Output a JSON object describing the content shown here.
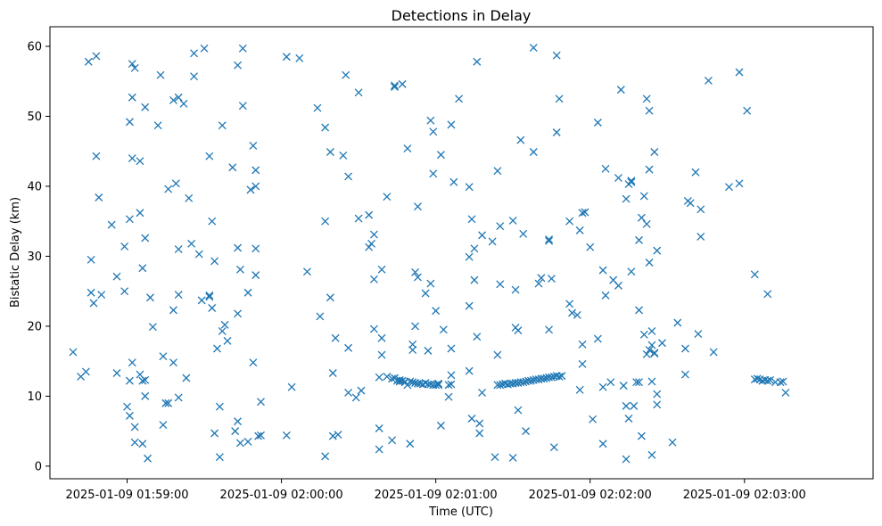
{
  "chart_data": {
    "type": "scatter",
    "title": "Detections in Delay",
    "xlabel": "Time (UTC)",
    "ylabel": "Bistatic Delay (km)",
    "marker": "x",
    "color": "#1f77b4",
    "x_tick_labels": [
      "2025-01-09 01:59:00",
      "2025-01-09 02:00:00",
      "2025-01-09 02:01:00",
      "2025-01-09 02:02:00",
      "2025-01-09 02:03:00"
    ],
    "x_tick_seconds": [
      0,
      60,
      120,
      180,
      240
    ],
    "x_unit_note": "seconds after 2025-01-09 01:59:00",
    "y_ticks": [
      0,
      10,
      20,
      30,
      40,
      50,
      60
    ],
    "xlim": [
      -30,
      290
    ],
    "ylim": [
      -1.8,
      62.8
    ],
    "grid": false,
    "legend": "none",
    "points": [
      [
        -21,
        16.3
      ],
      [
        -18,
        12.8
      ],
      [
        -16,
        13.5
      ],
      [
        -15,
        57.8
      ],
      [
        -14,
        24.8
      ],
      [
        -14,
        29.5
      ],
      [
        -13,
        23.3
      ],
      [
        -12,
        58.6
      ],
      [
        -12,
        44.3
      ],
      [
        -11,
        38.4
      ],
      [
        -10,
        24.5
      ],
      [
        -6,
        34.5
      ],
      [
        -4,
        27.1
      ],
      [
        -4,
        13.3
      ],
      [
        -1,
        25.0
      ],
      [
        -1,
        31.4
      ],
      [
        0,
        8.5
      ],
      [
        1,
        7.2
      ],
      [
        1,
        35.3
      ],
      [
        1,
        49.2
      ],
      [
        1,
        12.2
      ],
      [
        2,
        14.8
      ],
      [
        2,
        52.7
      ],
      [
        2,
        57.5
      ],
      [
        2,
        44.0
      ],
      [
        3,
        56.9
      ],
      [
        3,
        5.6
      ],
      [
        3,
        3.4
      ],
      [
        5,
        43.6
      ],
      [
        5,
        36.2
      ],
      [
        5,
        13.1
      ],
      [
        6,
        12.2
      ],
      [
        6,
        28.3
      ],
      [
        6,
        3.2
      ],
      [
        7,
        32.6
      ],
      [
        7,
        51.3
      ],
      [
        7,
        10.0
      ],
      [
        7,
        12.3
      ],
      [
        8,
        1.1
      ],
      [
        9,
        24.1
      ],
      [
        10,
        19.9
      ],
      [
        12,
        48.7
      ],
      [
        13,
        55.9
      ],
      [
        14,
        15.7
      ],
      [
        14,
        5.9
      ],
      [
        15,
        9.0
      ],
      [
        16,
        9.0
      ],
      [
        16,
        39.6
      ],
      [
        18,
        52.3
      ],
      [
        18,
        22.3
      ],
      [
        18,
        14.8
      ],
      [
        19,
        40.4
      ],
      [
        20,
        52.7
      ],
      [
        20,
        31.0
      ],
      [
        20,
        24.5
      ],
      [
        20,
        9.8
      ],
      [
        22,
        51.8
      ],
      [
        23,
        12.6
      ],
      [
        24,
        38.3
      ],
      [
        25,
        31.8
      ],
      [
        26,
        55.7
      ],
      [
        26,
        59.0
      ],
      [
        28,
        30.3
      ],
      [
        29,
        23.7
      ],
      [
        30,
        59.7
      ],
      [
        32,
        24.2
      ],
      [
        32,
        24.4
      ],
      [
        32,
        44.3
      ],
      [
        33,
        35.0
      ],
      [
        33,
        22.6
      ],
      [
        34,
        4.7
      ],
      [
        34,
        29.3
      ],
      [
        35,
        16.8
      ],
      [
        36,
        1.3
      ],
      [
        36,
        8.5
      ],
      [
        37,
        19.3
      ],
      [
        37,
        48.7
      ],
      [
        38,
        20.2
      ],
      [
        39,
        17.9
      ],
      [
        41,
        42.7
      ],
      [
        42,
        5.0
      ],
      [
        43,
        6.4
      ],
      [
        43,
        31.2
      ],
      [
        43,
        21.8
      ],
      [
        43,
        57.3
      ],
      [
        44,
        28.1
      ],
      [
        44,
        3.3
      ],
      [
        45,
        59.7
      ],
      [
        45,
        51.5
      ],
      [
        47,
        24.8
      ],
      [
        47,
        3.5
      ],
      [
        48,
        39.5
      ],
      [
        49,
        14.8
      ],
      [
        49,
        45.8
      ],
      [
        50,
        42.3
      ],
      [
        50,
        31.1
      ],
      [
        50,
        40.0
      ],
      [
        50,
        27.3
      ],
      [
        51,
        4.3
      ],
      [
        52,
        9.2
      ],
      [
        52,
        4.4
      ],
      [
        62,
        58.5
      ],
      [
        64,
        11.3
      ],
      [
        62,
        4.4
      ],
      [
        67,
        58.3
      ],
      [
        70,
        27.8
      ],
      [
        74,
        51.2
      ],
      [
        75,
        21.4
      ],
      [
        77,
        48.4
      ],
      [
        77,
        35.0
      ],
      [
        77,
        1.4
      ],
      [
        79,
        24.1
      ],
      [
        79,
        44.9
      ],
      [
        80,
        13.3
      ],
      [
        80,
        4.3
      ],
      [
        81,
        18.3
      ],
      [
        82,
        4.5
      ],
      [
        84,
        44.4
      ],
      [
        85,
        55.9
      ],
      [
        86,
        16.9
      ],
      [
        86,
        41.4
      ],
      [
        86,
        10.5
      ],
      [
        89,
        9.8
      ],
      [
        90,
        53.4
      ],
      [
        90,
        35.4
      ],
      [
        91,
        10.8
      ],
      [
        94,
        31.3
      ],
      [
        94,
        35.9
      ],
      [
        95,
        31.8
      ],
      [
        96,
        33.1
      ],
      [
        96,
        19.6
      ],
      [
        96,
        26.7
      ],
      [
        98,
        12.7
      ],
      [
        98,
        2.4
      ],
      [
        98,
        5.4
      ],
      [
        99,
        15.9
      ],
      [
        99,
        28.1
      ],
      [
        99,
        18.3
      ],
      [
        101,
        12.8
      ],
      [
        101,
        38.5
      ],
      [
        103,
        12.5
      ],
      [
        103,
        3.7
      ],
      [
        104,
        12.6
      ],
      [
        104,
        54.2
      ],
      [
        104,
        54.4
      ],
      [
        105,
        12.2
      ],
      [
        106,
        12.3
      ],
      [
        106,
        12.1
      ],
      [
        107,
        54.6
      ],
      [
        107,
        12.2
      ],
      [
        108,
        12.0
      ],
      [
        108,
        12.1
      ],
      [
        109,
        11.6
      ],
      [
        109,
        45.4
      ],
      [
        110,
        3.2
      ],
      [
        110,
        12.1
      ],
      [
        111,
        16.6
      ],
      [
        111,
        17.4
      ],
      [
        111,
        12.0
      ],
      [
        112,
        11.9
      ],
      [
        112,
        27.7
      ],
      [
        112,
        20.0
      ],
      [
        113,
        11.8
      ],
      [
        113,
        27.0
      ],
      [
        113,
        37.1
      ],
      [
        114,
        11.8
      ],
      [
        115,
        11.7
      ],
      [
        116,
        11.9
      ],
      [
        116,
        24.7
      ],
      [
        117,
        11.7
      ],
      [
        117,
        16.5
      ],
      [
        118,
        11.7
      ],
      [
        118,
        26.1
      ],
      [
        118,
        49.4
      ],
      [
        119,
        11.6
      ],
      [
        119,
        47.8
      ],
      [
        119,
        41.8
      ],
      [
        120,
        11.6
      ],
      [
        120,
        22.2
      ],
      [
        121,
        11.6
      ],
      [
        121,
        11.7
      ],
      [
        121,
        11.8
      ],
      [
        122,
        44.5
      ],
      [
        122,
        5.8
      ],
      [
        123,
        19.5
      ],
      [
        125,
        11.6
      ],
      [
        125,
        9.9
      ],
      [
        126,
        11.7
      ],
      [
        126,
        13.0
      ],
      [
        126,
        16.8
      ],
      [
        126,
        48.8
      ],
      [
        127,
        40.6
      ],
      [
        129,
        52.5
      ],
      [
        133,
        13.6
      ],
      [
        133,
        22.9
      ],
      [
        133,
        29.9
      ],
      [
        133,
        39.9
      ],
      [
        134,
        35.3
      ],
      [
        134,
        6.8
      ],
      [
        135,
        26.6
      ],
      [
        135,
        31.1
      ],
      [
        136,
        18.5
      ],
      [
        136,
        57.8
      ],
      [
        137,
        6.1
      ],
      [
        137,
        4.7
      ],
      [
        138,
        10.5
      ],
      [
        138,
        33.0
      ],
      [
        142,
        32.1
      ],
      [
        143,
        1.3
      ],
      [
        144,
        15.9
      ],
      [
        144,
        42.2
      ],
      [
        144,
        11.6
      ],
      [
        145,
        11.6
      ],
      [
        145,
        26.0
      ],
      [
        145,
        34.3
      ],
      [
        146,
        11.7
      ],
      [
        147,
        11.8
      ],
      [
        148,
        11.7
      ],
      [
        149,
        11.8
      ],
      [
        150,
        11.8
      ],
      [
        150,
        1.2
      ],
      [
        150,
        35.1
      ],
      [
        151,
        11.9
      ],
      [
        151,
        25.2
      ],
      [
        151,
        19.8
      ],
      [
        152,
        19.4
      ],
      [
        152,
        11.9
      ],
      [
        152,
        8.0
      ],
      [
        153,
        12.0
      ],
      [
        153,
        46.6
      ],
      [
        154,
        33.2
      ],
      [
        154,
        12.0
      ],
      [
        155,
        12.1
      ],
      [
        155,
        5.0
      ],
      [
        156,
        12.2
      ],
      [
        157,
        12.2
      ],
      [
        158,
        12.3
      ],
      [
        158,
        59.8
      ],
      [
        158,
        44.9
      ],
      [
        159,
        12.4
      ],
      [
        160,
        12.4
      ],
      [
        160,
        26.1
      ],
      [
        161,
        12.5
      ],
      [
        161,
        26.9
      ],
      [
        162,
        12.5
      ],
      [
        163,
        12.6
      ],
      [
        164,
        12.7
      ],
      [
        164,
        32.4
      ],
      [
        164,
        32.2
      ],
      [
        164,
        19.5
      ],
      [
        165,
        12.7
      ],
      [
        165,
        26.8
      ],
      [
        166,
        12.8
      ],
      [
        166,
        2.7
      ],
      [
        167,
        12.9
      ],
      [
        167,
        58.7
      ],
      [
        167,
        47.7
      ],
      [
        168,
        12.8
      ],
      [
        168,
        52.5
      ],
      [
        169,
        12.9
      ],
      [
        172,
        35.0
      ],
      [
        172,
        23.2
      ],
      [
        173,
        21.9
      ],
      [
        175,
        21.6
      ],
      [
        176,
        33.7
      ],
      [
        176,
        10.9
      ],
      [
        177,
        17.4
      ],
      [
        177,
        14.6
      ],
      [
        177,
        36.2
      ],
      [
        178,
        36.3
      ],
      [
        180,
        31.3
      ],
      [
        181,
        6.7
      ],
      [
        183,
        49.1
      ],
      [
        183,
        18.2
      ],
      [
        185,
        28.0
      ],
      [
        185,
        11.3
      ],
      [
        185,
        3.2
      ],
      [
        186,
        24.4
      ],
      [
        186,
        42.5
      ],
      [
        188,
        12.0
      ],
      [
        189,
        26.6
      ],
      [
        191,
        25.8
      ],
      [
        191,
        41.2
      ],
      [
        192,
        53.8
      ],
      [
        193,
        11.5
      ],
      [
        194,
        38.2
      ],
      [
        194,
        8.6
      ],
      [
        194,
        1.0
      ],
      [
        195,
        40.3
      ],
      [
        195,
        6.8
      ],
      [
        196,
        27.8
      ],
      [
        196,
        40.8
      ],
      [
        196,
        40.6
      ],
      [
        197,
        8.6
      ],
      [
        198,
        12.0
      ],
      [
        199,
        22.3
      ],
      [
        199,
        32.3
      ],
      [
        199,
        12.0
      ],
      [
        200,
        4.3
      ],
      [
        200,
        35.5
      ],
      [
        201,
        18.8
      ],
      [
        201,
        38.6
      ],
      [
        202,
        34.6
      ],
      [
        202,
        16.0
      ],
      [
        202,
        52.5
      ],
      [
        203,
        50.8
      ],
      [
        203,
        42.4
      ],
      [
        203,
        29.1
      ],
      [
        203,
        16.6
      ],
      [
        204,
        19.3
      ],
      [
        204,
        17.3
      ],
      [
        204,
        12.1
      ],
      [
        204,
        1.6
      ],
      [
        205,
        44.9
      ],
      [
        205,
        16.2
      ],
      [
        205,
        16.1
      ],
      [
        206,
        8.8
      ],
      [
        206,
        10.3
      ],
      [
        206,
        30.8
      ],
      [
        208,
        17.6
      ],
      [
        212,
        3.4
      ],
      [
        214,
        20.5
      ],
      [
        217,
        16.8
      ],
      [
        217,
        13.1
      ],
      [
        218,
        37.9
      ],
      [
        219,
        37.6
      ],
      [
        221,
        42.0
      ],
      [
        222,
        18.9
      ],
      [
        223,
        36.7
      ],
      [
        223,
        32.8
      ],
      [
        226,
        55.1
      ],
      [
        228,
        16.3
      ],
      [
        234,
        39.9
      ],
      [
        238,
        40.4
      ],
      [
        238,
        56.3
      ],
      [
        241,
        50.8
      ],
      [
        244,
        12.4
      ],
      [
        244,
        27.4
      ],
      [
        245,
        12.5
      ],
      [
        246,
        12.4
      ],
      [
        247,
        12.2
      ],
      [
        248,
        12.3
      ],
      [
        249,
        12.2
      ],
      [
        250,
        12.3
      ],
      [
        249,
        24.6
      ],
      [
        252,
        12.0
      ],
      [
        254,
        12.0
      ],
      [
        255,
        12.1
      ],
      [
        256,
        10.5
      ]
    ]
  }
}
